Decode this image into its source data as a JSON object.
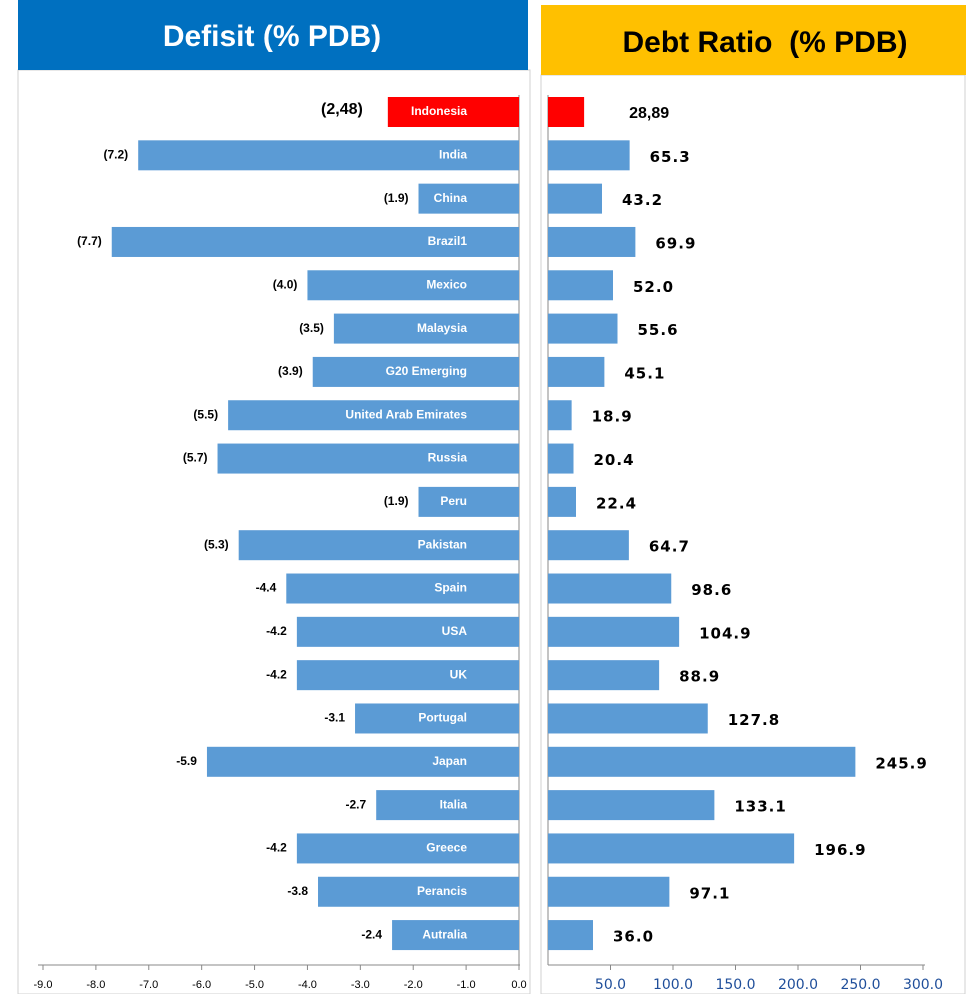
{
  "chart_data": [
    {
      "type": "barh",
      "title": "Defisit (% PDB)",
      "categories": [
        "Indonesia",
        "India",
        "China",
        "Brazil1",
        "Mexico",
        "Malaysia",
        "G20 Emerging",
        "United Arab Emirates",
        "Russia",
        "Peru",
        "Pakistan",
        "Spain",
        "USA",
        "UK",
        "Portugal",
        "Japan",
        "Italia",
        "Greece",
        "Perancis",
        "Autralia"
      ],
      "values": [
        -2.48,
        -7.2,
        -1.9,
        -7.7,
        -4.0,
        -3.5,
        -3.9,
        -5.5,
        -5.7,
        -1.9,
        -5.3,
        -4.4,
        -4.2,
        -4.2,
        -3.1,
        -5.9,
        -2.7,
        -4.2,
        -3.8,
        -2.4
      ],
      "value_labels": [
        "(2,48)",
        "(7.2)",
        "(1.9)",
        "(7.7)",
        "(4.0)",
        "(3.5)",
        "(3.9)",
        "(5.5)",
        "(5.7)",
        "(1.9)",
        "(5.3)",
        "-4.4",
        "-4.2",
        "-4.2",
        "-3.1",
        "-5.9",
        "-2.7",
        "-4.2",
        "-3.8",
        "-2.4"
      ],
      "color": "#5b9bd5",
      "colors": [
        "#ff0000",
        "#5b9bd5",
        "#5b9bd5",
        "#5b9bd5",
        "#5b9bd5",
        "#5b9bd5",
        "#5b9bd5",
        "#5b9bd5",
        "#5b9bd5",
        "#5b9bd5",
        "#5b9bd5",
        "#5b9bd5",
        "#5b9bd5",
        "#5b9bd5",
        "#5b9bd5",
        "#5b9bd5",
        "#5b9bd5",
        "#5b9bd5",
        "#5b9bd5",
        "#5b9bd5"
      ],
      "xlim": [
        -9,
        0
      ],
      "xticks": [
        {
          "value": -9,
          "label": "-9.0"
        },
        {
          "value": -8,
          "label": "-8.0"
        },
        {
          "value": -7,
          "label": "-7.0"
        },
        {
          "value": -6,
          "label": "-6.0"
        },
        {
          "value": -5,
          "label": "-5.0"
        },
        {
          "value": -4,
          "label": "-4.0"
        },
        {
          "value": -3,
          "label": "-3.0"
        },
        {
          "value": -2,
          "label": "-2.0"
        },
        {
          "value": -1,
          "label": "-1.0"
        },
        {
          "value": 0,
          "label": "0.0"
        }
      ]
    },
    {
      "type": "barh",
      "title": "Debt Ratio  (% PDB)",
      "values": [
        28.89,
        65.3,
        43.2,
        69.9,
        52.0,
        55.6,
        45.1,
        18.9,
        20.4,
        22.4,
        64.7,
        98.6,
        104.9,
        88.9,
        127.8,
        245.9,
        133.1,
        196.9,
        97.1,
        36.0
      ],
      "value_labels": [
        "28,89",
        "65.3",
        "43.2",
        "69.9",
        "52.0",
        "55.6",
        "45.1",
        "18.9",
        "20.4",
        "22.4",
        "64.7",
        "98.6",
        "104.9",
        "88.9",
        "127.8",
        "245.9",
        "133.1",
        "196.9",
        "97.1",
        "36.0"
      ],
      "color": "#5b9bd5",
      "colors": [
        "#ff0000",
        "#5b9bd5",
        "#5b9bd5",
        "#5b9bd5",
        "#5b9bd5",
        "#5b9bd5",
        "#5b9bd5",
        "#5b9bd5",
        "#5b9bd5",
        "#5b9bd5",
        "#5b9bd5",
        "#5b9bd5",
        "#5b9bd5",
        "#5b9bd5",
        "#5b9bd5",
        "#5b9bd5",
        "#5b9bd5",
        "#5b9bd5",
        "#5b9bd5",
        "#5b9bd5"
      ],
      "xlim": [
        0,
        300
      ],
      "xticks": [
        {
          "value": 50,
          "label": "50.0"
        },
        {
          "value": 100,
          "label": "100.0"
        },
        {
          "value": 150,
          "label": "150.0"
        },
        {
          "value": 200,
          "label": "200.0"
        },
        {
          "value": 250,
          "label": "250.0"
        },
        {
          "value": 300,
          "label": "300.0"
        }
      ]
    }
  ]
}
